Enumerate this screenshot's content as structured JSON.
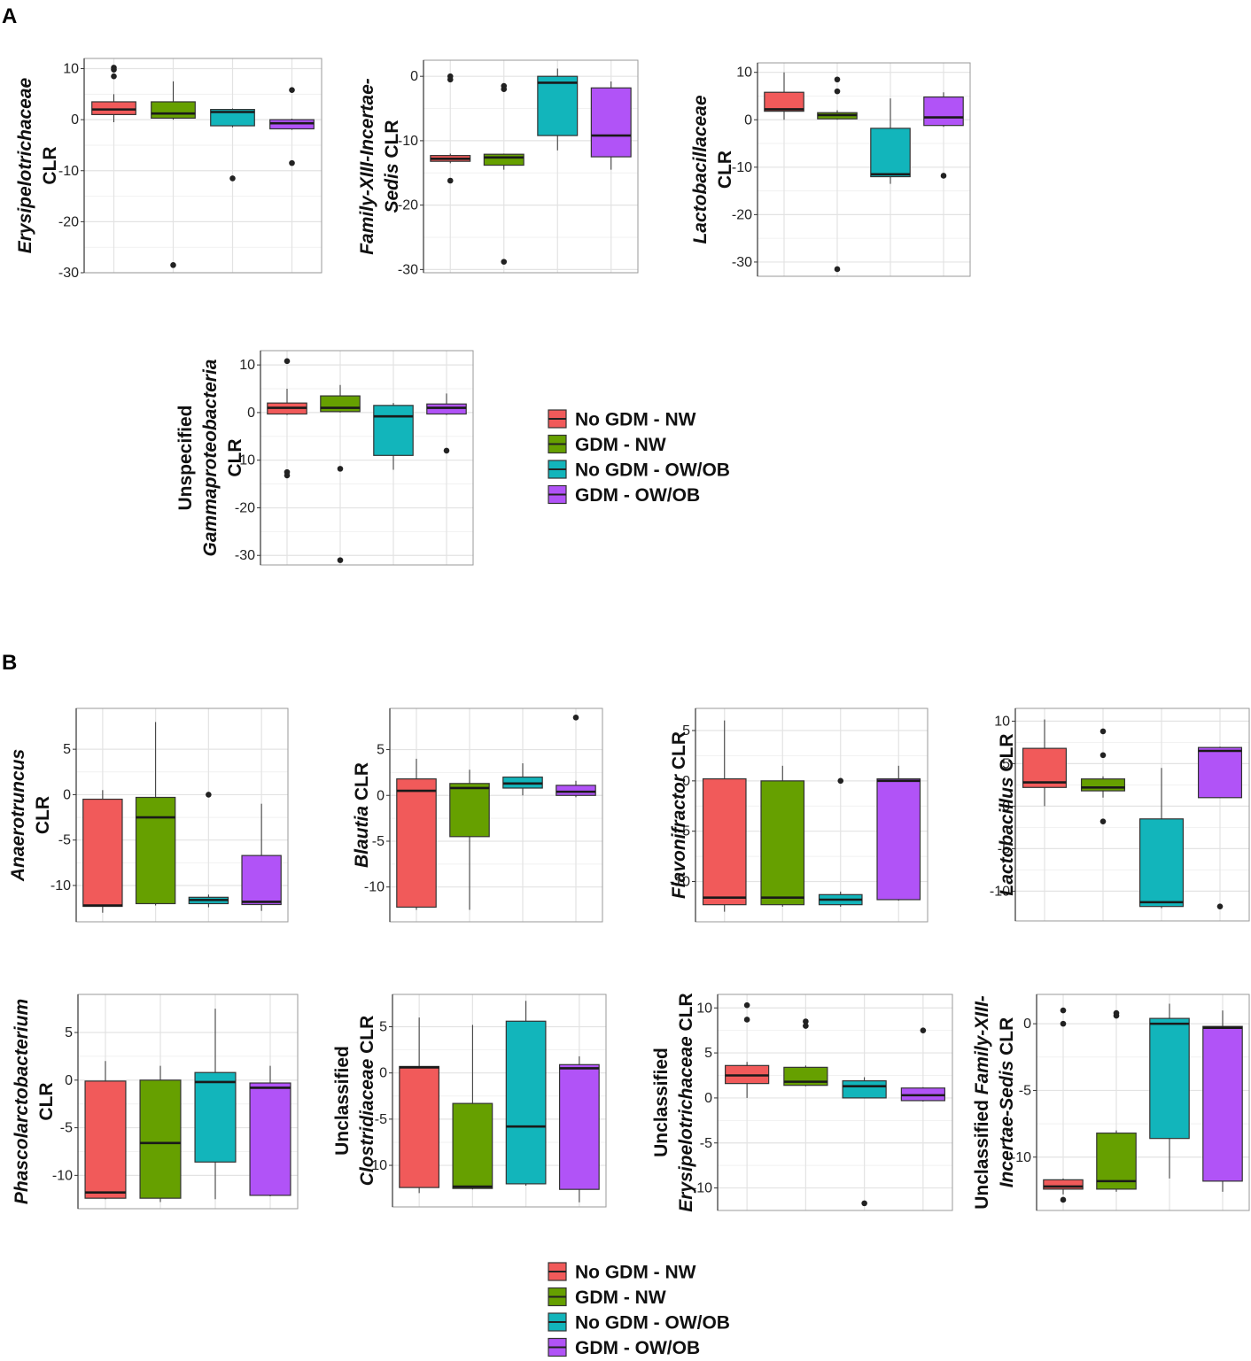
{
  "panel_labels": {
    "a": "A",
    "b": "B"
  },
  "colors": {
    "No GDM - NW": "#f15a5a",
    "GDM - NW": "#66a000",
    "No GDM - OW/OB": "#12b5bb",
    "GDM - OW/OB": "#b153f7"
  },
  "legend": {
    "entries": [
      "No GDM - NW",
      "GDM - NW",
      "No GDM - OW/OB",
      "GDM - OW/OB"
    ]
  },
  "chart_data": [
    {
      "type": "boxplot",
      "panel": "A",
      "ylabel_lines": [
        [
          {
            "t": "Erysipelotrichaceae",
            "i": true
          }
        ],
        [
          {
            "t": "CLR",
            "i": false
          }
        ]
      ],
      "ylim": [
        -30,
        12
      ],
      "ticks": [
        10,
        0,
        -10,
        -20,
        -30
      ],
      "groups": [
        "No GDM - NW",
        "GDM - NW",
        "No GDM - OW/OB",
        "GDM - OW/OB"
      ],
      "boxes": [
        {
          "lo": -0.5,
          "q1": 1,
          "med": 2,
          "q3": 3.5,
          "hi": 5,
          "out": [
            8.5,
            9.8,
            10.2
          ]
        },
        {
          "lo": 0,
          "q1": 0.3,
          "med": 1.2,
          "q3": 3.5,
          "hi": 7.5,
          "out": [
            -28.5
          ]
        },
        {
          "lo": -1.5,
          "q1": -1.2,
          "med": 1.5,
          "q3": 2,
          "hi": 2.2,
          "out": [
            -11.5
          ]
        },
        {
          "lo": -2,
          "q1": -1.8,
          "med": -0.7,
          "q3": 0,
          "hi": 0.2,
          "out": [
            5.8,
            -8.5
          ]
        }
      ]
    },
    {
      "type": "boxplot",
      "panel": "A",
      "ylabel_lines": [
        [
          {
            "t": "Family-XIII-Incertae-",
            "i": true
          }
        ],
        [
          {
            "t": "Sedis",
            "i": true
          },
          {
            "t": " CLR",
            "i": false
          }
        ]
      ],
      "ylim": [
        -30.5,
        2.5
      ],
      "ticks": [
        0,
        -10,
        -20,
        -30
      ],
      "groups": [
        "No GDM - NW",
        "GDM - NW",
        "No GDM - OW/OB",
        "GDM - OW/OB"
      ],
      "boxes": [
        {
          "lo": -13.5,
          "q1": -13.2,
          "med": -12.8,
          "q3": -12.3,
          "hi": -12,
          "out": [
            0,
            -0.5,
            -16.2
          ]
        },
        {
          "lo": -14.5,
          "q1": -13.8,
          "med": -12.6,
          "q3": -12.1,
          "hi": -12,
          "out": [
            -1.5,
            -2,
            -28.8
          ]
        },
        {
          "lo": -11.5,
          "q1": -9.2,
          "med": -1,
          "q3": 0,
          "hi": 1.2,
          "out": []
        },
        {
          "lo": -14.5,
          "q1": -12.5,
          "med": -9.2,
          "q3": -1.8,
          "hi": -0.8,
          "out": []
        }
      ]
    },
    {
      "type": "boxplot",
      "panel": "A",
      "ylabel_lines": [
        [
          {
            "t": "Lactobacillaceae",
            "i": true
          }
        ],
        [
          {
            "t": "CLR",
            "i": false
          }
        ]
      ],
      "ylim": [
        -33,
        12
      ],
      "ticks": [
        10,
        0,
        -10,
        -20,
        -30
      ],
      "groups": [
        "No GDM - NW",
        "GDM - NW",
        "No GDM - OW/OB",
        "GDM - OW/OB"
      ],
      "boxes": [
        {
          "lo": 0,
          "q1": 1.8,
          "med": 2.2,
          "q3": 5.8,
          "hi": 10,
          "out": []
        },
        {
          "lo": 0,
          "q1": 0.2,
          "med": 1,
          "q3": 1.5,
          "hi": 2,
          "out": [
            8.5,
            6,
            -31.5
          ]
        },
        {
          "lo": -13.5,
          "q1": -12,
          "med": -11.5,
          "q3": -1.8,
          "hi": 4.5,
          "out": []
        },
        {
          "lo": -1.5,
          "q1": -1.2,
          "med": 0.5,
          "q3": 4.8,
          "hi": 5.8,
          "out": [
            -11.8
          ]
        }
      ]
    },
    {
      "type": "boxplot",
      "panel": "A",
      "ylabel_lines": [
        [
          {
            "t": "Unspecified",
            "i": false
          }
        ],
        [
          {
            "t": "Gammaproteobacteria",
            "i": true
          }
        ],
        [
          {
            "t": "CLR",
            "i": false
          }
        ]
      ],
      "ylim": [
        -32,
        13
      ],
      "ticks": [
        10,
        0,
        -10,
        -20,
        -30
      ],
      "groups": [
        "No GDM - NW",
        "GDM - NW",
        "No GDM - OW/OB",
        "GDM - OW/OB"
      ],
      "boxes": [
        {
          "lo": -0.5,
          "q1": -0.3,
          "med": 1,
          "q3": 2,
          "hi": 5,
          "out": [
            10.8,
            -12.5,
            -13.2
          ]
        },
        {
          "lo": 0,
          "q1": 0.2,
          "med": 1,
          "q3": 3.5,
          "hi": 5.8,
          "out": [
            -11.8,
            -31
          ]
        },
        {
          "lo": -12,
          "q1": -9,
          "med": -0.8,
          "q3": 1.5,
          "hi": 2,
          "out": []
        },
        {
          "lo": -0.5,
          "q1": -0.3,
          "med": 1,
          "q3": 1.8,
          "hi": 4,
          "out": [
            -8
          ]
        }
      ]
    },
    {
      "type": "boxplot",
      "panel": "B",
      "ylabel_lines": [
        [
          {
            "t": "Anaerotruncus",
            "i": true
          }
        ],
        [
          {
            "t": "CLR",
            "i": false
          }
        ]
      ],
      "ylim": [
        -14,
        9.5
      ],
      "ticks": [
        5,
        0,
        -5,
        -10
      ],
      "groups": [
        "No GDM - NW",
        "GDM - NW",
        "No GDM - OW/OB",
        "GDM - OW/OB"
      ],
      "boxes": [
        {
          "lo": -13,
          "q1": -12.3,
          "med": -12.2,
          "q3": -0.5,
          "hi": 0.5,
          "out": []
        },
        {
          "lo": -12.2,
          "q1": -12,
          "med": -2.5,
          "q3": -0.3,
          "hi": 8,
          "out": []
        },
        {
          "lo": -12.4,
          "q1": -12,
          "med": -11.6,
          "q3": -11.3,
          "hi": -11,
          "out": [
            0
          ]
        },
        {
          "lo": -12.8,
          "q1": -12.1,
          "med": -11.8,
          "q3": -6.7,
          "hi": -1,
          "out": []
        }
      ]
    },
    {
      "type": "boxplot",
      "panel": "B",
      "ylabel_lines": [
        [
          {
            "t": "Blautia",
            "i": true
          },
          {
            "t": " CLR",
            "i": false
          }
        ]
      ],
      "ylim": [
        -13.8,
        9.5
      ],
      "ticks": [
        5,
        0,
        -5,
        -10
      ],
      "groups": [
        "No GDM - NW",
        "GDM - NW",
        "No GDM - OW/OB",
        "GDM - OW/OB"
      ],
      "boxes": [
        {
          "lo": -12.5,
          "q1": -12.2,
          "med": 0.5,
          "q3": 1.8,
          "hi": 4,
          "out": []
        },
        {
          "lo": -12.5,
          "q1": -4.5,
          "med": 0.8,
          "q3": 1.3,
          "hi": 2.8,
          "out": []
        },
        {
          "lo": 0,
          "q1": 0.8,
          "med": 1.3,
          "q3": 2,
          "hi": 3.5,
          "out": []
        },
        {
          "lo": -0.2,
          "q1": 0,
          "med": 0.4,
          "q3": 1.1,
          "hi": 1.6,
          "out": [
            8.5
          ]
        }
      ]
    },
    {
      "type": "boxplot",
      "panel": "B",
      "ylabel_lines": [
        [
          {
            "t": "Flavonifractor",
            "i": true
          },
          {
            "t": " CLR",
            "i": false
          }
        ]
      ],
      "ylim": [
        -14,
        7.2
      ],
      "ticks": [
        5,
        0,
        -5,
        -10
      ],
      "groups": [
        "No GDM - NW",
        "GDM - NW",
        "No GDM - OW/OB",
        "GDM - OW/OB"
      ],
      "boxes": [
        {
          "lo": -13,
          "q1": -12.3,
          "med": -11.6,
          "q3": 0.2,
          "hi": 6,
          "out": []
        },
        {
          "lo": -12.5,
          "q1": -12.3,
          "med": -11.6,
          "q3": 0,
          "hi": 1.5,
          "out": []
        },
        {
          "lo": -12.5,
          "q1": -12.3,
          "med": -11.8,
          "q3": -11.3,
          "hi": -11,
          "out": [
            0
          ]
        },
        {
          "lo": -11.9,
          "q1": -11.8,
          "med": 0,
          "q3": 0.2,
          "hi": 1.5,
          "out": []
        }
      ]
    },
    {
      "type": "boxplot",
      "panel": "B",
      "ylabel_lines": [
        [
          {
            "t": "Lactobacillus",
            "i": true
          },
          {
            "t": " CLR",
            "i": false
          }
        ]
      ],
      "ylim": [
        -13.5,
        11.5
      ],
      "ticks": [
        10,
        5,
        0,
        -5,
        -10
      ],
      "groups": [
        "No GDM - NW",
        "GDM - NW",
        "No GDM - OW/OB",
        "GDM - OW/OB"
      ],
      "boxes": [
        {
          "lo": 0,
          "q1": 2.2,
          "med": 2.8,
          "q3": 6.8,
          "hi": 10.2,
          "out": []
        },
        {
          "lo": 1,
          "q1": 1.8,
          "med": 2.2,
          "q3": 3.2,
          "hi": 3.5,
          "out": [
            8.8,
            6,
            -1.8
          ]
        },
        {
          "lo": -12,
          "q1": -11.8,
          "med": -11.3,
          "q3": -1.5,
          "hi": 4.5,
          "out": []
        },
        {
          "lo": 1,
          "q1": 1,
          "med": 6.5,
          "q3": 6.9,
          "hi": 7,
          "out": [
            -11.8
          ]
        }
      ]
    },
    {
      "type": "boxplot",
      "panel": "B",
      "ylabel_lines": [
        [
          {
            "t": "Phascolarctobacterium",
            "i": true
          }
        ],
        [
          {
            "t": "CLR",
            "i": false
          }
        ]
      ],
      "ylim": [
        -13.5,
        9
      ],
      "ticks": [
        5,
        0,
        -5,
        -10
      ],
      "groups": [
        "No GDM - NW",
        "GDM - NW",
        "No GDM - OW/OB",
        "GDM - OW/OB"
      ],
      "boxes": [
        {
          "lo": -12.5,
          "q1": -12.4,
          "med": -11.8,
          "q3": -0.1,
          "hi": 2,
          "out": []
        },
        {
          "lo": -12.8,
          "q1": -12.4,
          "med": -6.6,
          "q3": 0,
          "hi": 1.5,
          "out": []
        },
        {
          "lo": -12.5,
          "q1": -8.6,
          "med": -0.2,
          "q3": 0.8,
          "hi": 7.5,
          "out": []
        },
        {
          "lo": -12.2,
          "q1": -12.1,
          "med": -0.8,
          "q3": -0.3,
          "hi": 1.5,
          "out": []
        }
      ]
    },
    {
      "type": "boxplot",
      "panel": "B",
      "ylabel_lines": [
        [
          {
            "t": "Unclassified",
            "i": false
          }
        ],
        [
          {
            "t": "Clostridiaceae",
            "i": true
          },
          {
            "t": " CLR",
            "i": false
          }
        ]
      ],
      "ylim": [
        -14.5,
        8.5
      ],
      "ticks": [
        5,
        0,
        -5,
        -10
      ],
      "groups": [
        "No GDM - NW",
        "GDM - NW",
        "No GDM - OW/OB",
        "GDM - OW/OB"
      ],
      "boxes": [
        {
          "lo": -13,
          "q1": -12.4,
          "med": 0.6,
          "q3": 0.7,
          "hi": 6,
          "out": []
        },
        {
          "lo": -12.6,
          "q1": -12.5,
          "med": -12.3,
          "q3": -3.3,
          "hi": 5.2,
          "out": []
        },
        {
          "lo": -12.2,
          "q1": -12,
          "med": -5.8,
          "q3": 5.6,
          "hi": 7.8,
          "out": []
        },
        {
          "lo": -14,
          "q1": -12.6,
          "med": 0.5,
          "q3": 0.9,
          "hi": 1.8,
          "out": []
        }
      ]
    },
    {
      "type": "boxplot",
      "panel": "B",
      "ylabel_lines": [
        [
          {
            "t": "Unclassified",
            "i": false
          }
        ],
        [
          {
            "t": "Erysipelotrichaceae",
            "i": true
          },
          {
            "t": " CLR",
            "i": false
          }
        ]
      ],
      "ylim": [
        -12.5,
        11.5
      ],
      "ticks": [
        10,
        5,
        0,
        -5,
        -10
      ],
      "groups": [
        "No GDM - NW",
        "GDM - NW",
        "No GDM - OW/OB",
        "GDM - OW/OB"
      ],
      "boxes": [
        {
          "lo": 0,
          "q1": 1.6,
          "med": 2.5,
          "q3": 3.6,
          "hi": 4,
          "out": [
            10.3,
            8.7
          ]
        },
        {
          "lo": 1.3,
          "q1": 1.4,
          "med": 1.8,
          "q3": 3.4,
          "hi": 3.6,
          "out": [
            8.5,
            8
          ]
        },
        {
          "lo": 0,
          "q1": 0,
          "med": 1.3,
          "q3": 1.9,
          "hi": 2.3,
          "out": [
            -11.7
          ]
        },
        {
          "lo": -0.4,
          "q1": -0.3,
          "med": 0.3,
          "q3": 1.1,
          "hi": 1.2,
          "out": [
            7.5
          ]
        }
      ]
    },
    {
      "type": "boxplot",
      "panel": "B",
      "ylabel_lines": [
        [
          {
            "t": "Unclassified ",
            "i": false
          },
          {
            "t": "Family-XIII-",
            "i": true
          }
        ],
        [
          {
            "t": "Incertae-Sedis",
            "i": true
          },
          {
            "t": " CLR",
            "i": false
          }
        ]
      ],
      "ylim": [
        -14,
        2.2
      ],
      "ticks": [
        0,
        -5,
        -10
      ],
      "groups": [
        "No GDM - NW",
        "GDM - NW",
        "No GDM - OW/OB",
        "GDM - OW/OB"
      ],
      "boxes": [
        {
          "lo": -12.8,
          "q1": -12.4,
          "med": -12.2,
          "q3": -11.7,
          "hi": -11.6,
          "out": [
            1,
            0,
            -13.2
          ]
        },
        {
          "lo": -12.6,
          "q1": -12.4,
          "med": -11.8,
          "q3": -8.2,
          "hi": -8,
          "out": [
            0.8,
            0.6
          ]
        },
        {
          "lo": -11.6,
          "q1": -8.6,
          "med": 0,
          "q3": 0.4,
          "hi": 1.5,
          "out": []
        },
        {
          "lo": -12.6,
          "q1": -11.8,
          "med": -0.3,
          "q3": -0.2,
          "hi": 1,
          "out": []
        }
      ]
    }
  ]
}
